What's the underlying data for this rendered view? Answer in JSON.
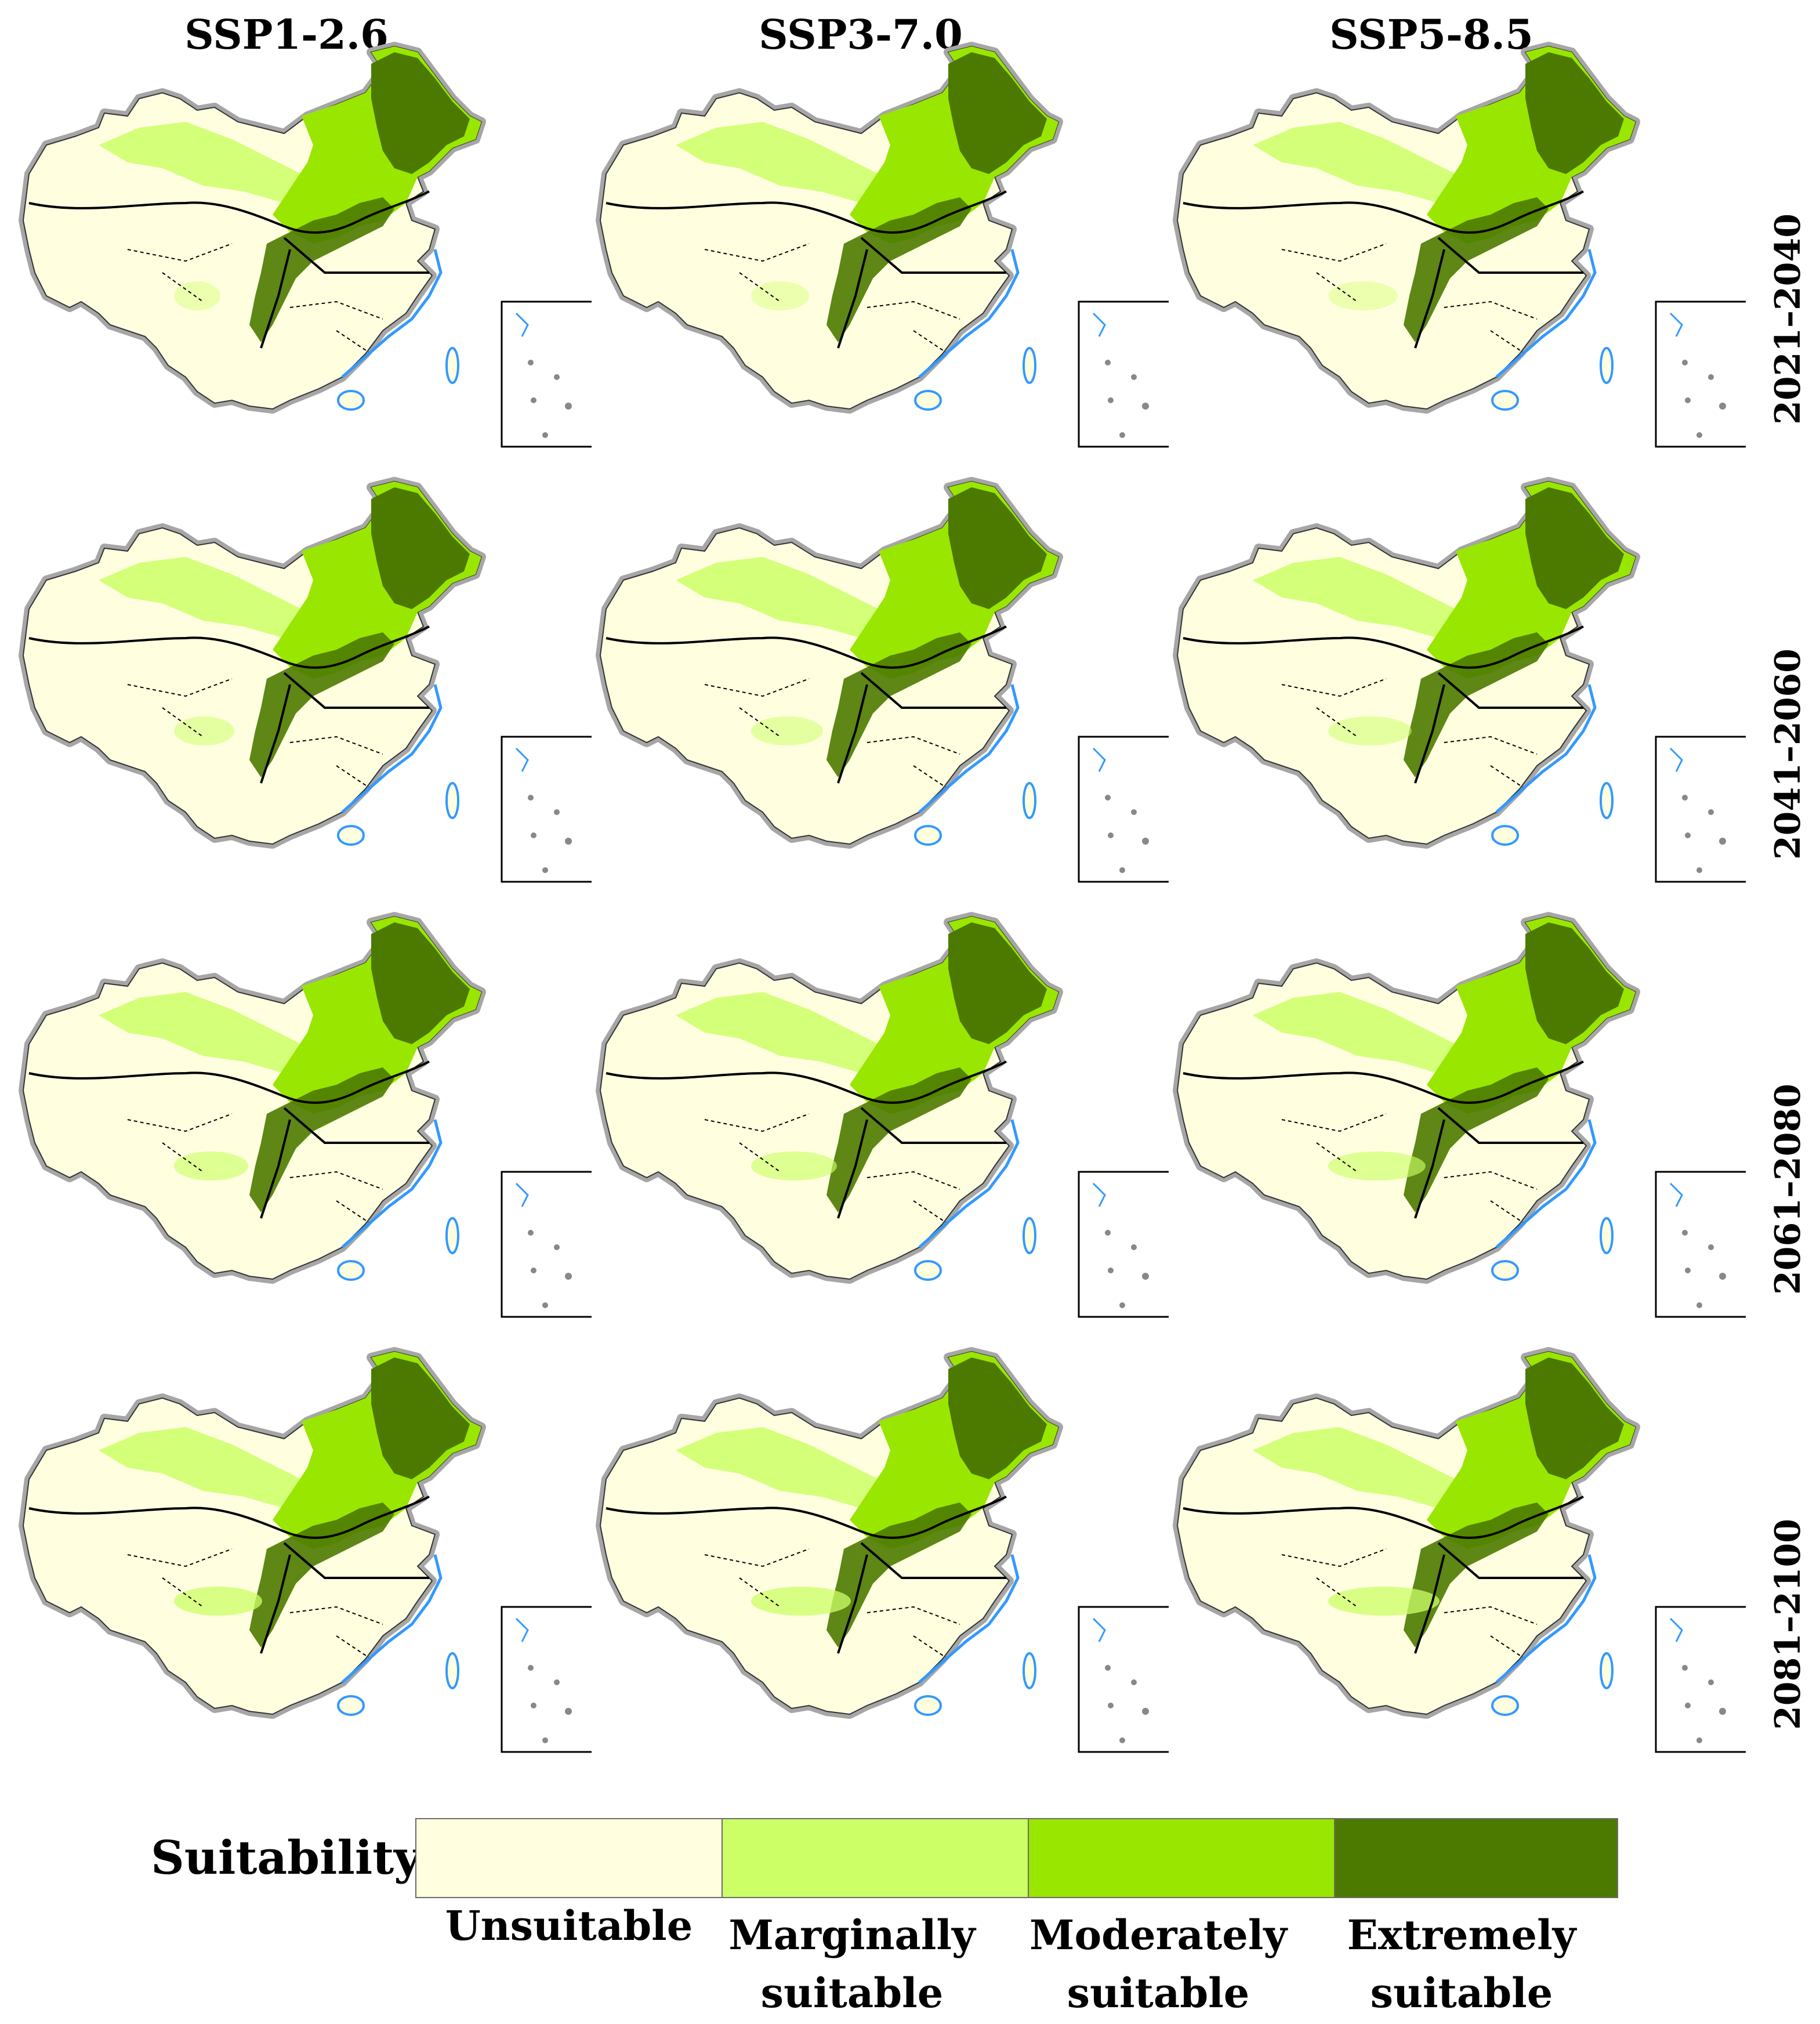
{
  "scenarios": [
    "SSP1-2.6",
    "SSP3-7.0",
    "SSP5-8.5"
  ],
  "periods": [
    "2021–2040",
    "2041–2060",
    "2061–2080",
    "2081–2100"
  ],
  "legend": {
    "title": "Suitability",
    "classes": [
      {
        "label": "Unsuitable",
        "color": "#FFFFE0"
      },
      {
        "label": "Marginally suitable",
        "color": "#CCFF66"
      },
      {
        "label": "Moderately suitable",
        "color": "#99E600"
      },
      {
        "label": "Extremely suitable",
        "color": "#4C7A00"
      }
    ]
  },
  "colors": {
    "border_halo": "#A6A6A6",
    "coastline": "#3399FF",
    "boundary_line": "#000000"
  }
}
